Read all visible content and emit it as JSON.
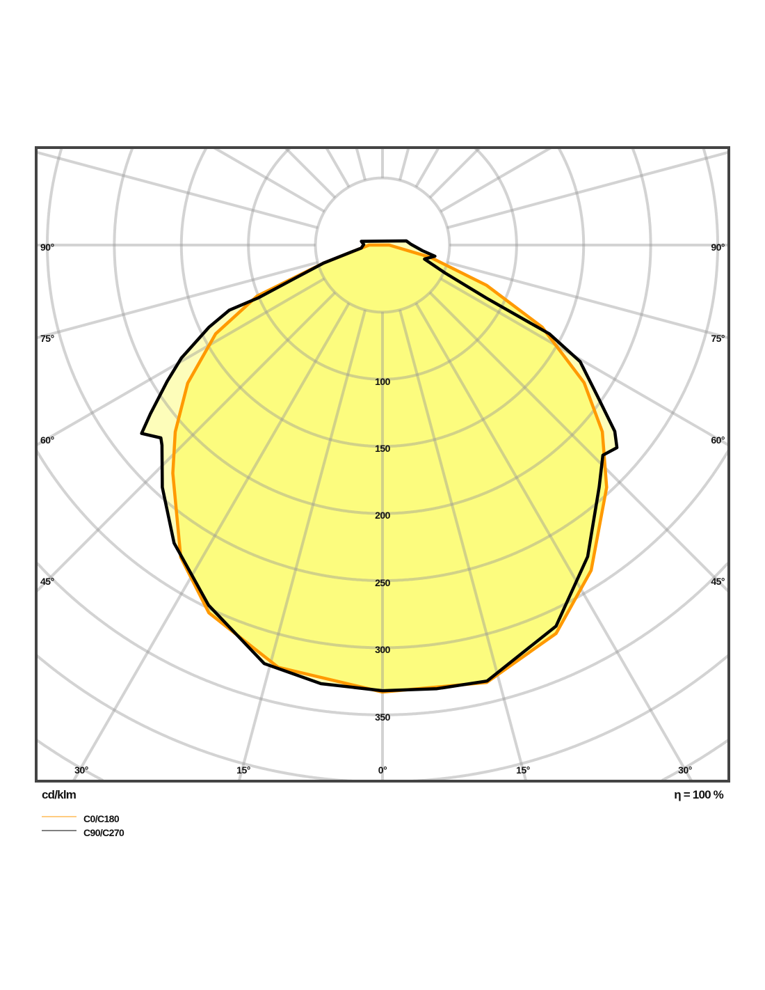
{
  "chart_data": {
    "type": "polar",
    "unit_label": "cd/klm",
    "efficiency_label": "η = 100 %",
    "radial_ticks": [
      100,
      150,
      200,
      250,
      300,
      350
    ],
    "radial_tick_labels": [
      "100",
      "150",
      "200",
      "250",
      "300",
      "350"
    ],
    "grid_step": 50,
    "angle_step_deg": 15,
    "angle_labels": {
      "left": [
        "90°",
        "75°",
        "60°",
        "45°"
      ],
      "right": [
        "90°",
        "75°",
        "60°",
        "45°"
      ],
      "bottom": [
        "30°",
        "15°",
        "0°",
        "15°",
        "30°"
      ]
    },
    "grid": true,
    "colors": {
      "C0/C180": "#ff9900",
      "C90/C270": "#000000",
      "fill_outer": "#fdfdba",
      "fill_inner": "#fcfc7e",
      "grid": "#b4b4b4",
      "frame": "#444444"
    },
    "legend_placement": "bottom-left",
    "series": [
      {
        "name": "C90/C270",
        "left": [
          [
            100,
            16
          ],
          [
            92,
            14
          ],
          [
            82,
            16
          ],
          [
            73,
            46
          ],
          [
            69,
            72
          ],
          [
            67,
            101
          ],
          [
            67,
            124
          ],
          [
            64.7,
            143
          ],
          [
            60.7,
            172
          ],
          [
            57.7,
            190
          ],
          [
            54,
            214
          ],
          [
            52,
            228
          ],
          [
            49,
            219
          ],
          [
            47.8,
            222
          ],
          [
            42.3,
            244
          ],
          [
            35,
            271
          ],
          [
            25.8,
            298
          ],
          [
            15.8,
            324
          ],
          [
            8,
            330
          ],
          [
            0,
            332
          ]
        ],
        "right": [
          [
            0,
            332
          ],
          [
            7,
            333
          ],
          [
            13.5,
            334
          ],
          [
            24.5,
            312
          ],
          [
            33.4,
            278
          ],
          [
            41.9,
            242
          ],
          [
            46.4,
            227
          ],
          [
            49.2,
            231
          ],
          [
            51.3,
            222
          ],
          [
            54.9,
            196
          ],
          [
            59.5,
            171
          ],
          [
            62,
            141
          ],
          [
            63,
            87
          ],
          [
            66,
            51
          ],
          [
            71.6,
            33
          ],
          [
            78,
            40
          ],
          [
            82,
            30
          ],
          [
            92,
            21
          ],
          [
            100,
            18
          ]
        ]
      },
      {
        "name": "C0/C180",
        "left": [
          [
            90,
            10
          ],
          [
            73,
            46
          ],
          [
            67.9,
            101
          ],
          [
            62,
            141
          ],
          [
            54.7,
            178
          ],
          [
            48,
            208
          ],
          [
            42.6,
            231
          ],
          [
            32.9,
            277
          ],
          [
            25.3,
            303
          ],
          [
            13.9,
            324
          ],
          [
            0,
            333
          ]
        ],
        "right": [
          [
            0,
            333
          ],
          [
            13.4,
            335
          ],
          [
            24.1,
            317
          ],
          [
            32.7,
            288
          ],
          [
            42.8,
            246
          ],
          [
            49.7,
            215
          ],
          [
            55.7,
            182
          ],
          [
            62.8,
            134
          ],
          [
            68.9,
            83
          ],
          [
            75.6,
            37
          ],
          [
            90,
            5
          ]
        ]
      }
    ]
  }
}
